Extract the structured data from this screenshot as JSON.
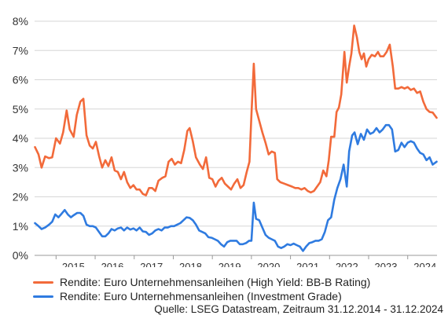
{
  "chart_data": {
    "type": "line",
    "title": "",
    "xlabel": "",
    "ylabel": "",
    "ylim": [
      0,
      8
    ],
    "xlim": [
      2014.45,
      2024.75
    ],
    "y_tick_values": [
      0,
      1,
      2,
      3,
      4,
      5,
      6,
      7,
      8
    ],
    "y_tick_labels": [
      "0%",
      "1%",
      "2%",
      "3%",
      "4%",
      "5%",
      "6%",
      "7%",
      "8%"
    ],
    "x_tick_positions": [
      2015,
      2016,
      2017,
      2018,
      2019,
      2020,
      2021,
      2022,
      2023,
      2024
    ],
    "x_tick_labels": [
      "2015",
      "2016",
      "2017",
      "2018",
      "2019",
      "2020",
      "2021",
      "2022",
      "2023",
      "2024"
    ],
    "grid": "horizontal",
    "legend_position": "bottom",
    "series": [
      {
        "name": "Rendite: Euro Unternehmensanleihen (High Yield: BB-B Rating)",
        "color": "#f26a3a",
        "points": [
          [
            2014.46,
            3.7
          ],
          [
            2014.55,
            3.45
          ],
          [
            2014.63,
            3.0
          ],
          [
            2014.72,
            3.38
          ],
          [
            2014.82,
            3.32
          ],
          [
            2014.9,
            3.35
          ],
          [
            2015.0,
            4.0
          ],
          [
            2015.1,
            3.82
          ],
          [
            2015.18,
            4.2
          ],
          [
            2015.27,
            4.95
          ],
          [
            2015.35,
            4.3
          ],
          [
            2015.45,
            4.05
          ],
          [
            2015.53,
            4.8
          ],
          [
            2015.62,
            5.25
          ],
          [
            2015.7,
            5.35
          ],
          [
            2015.78,
            4.1
          ],
          [
            2015.86,
            3.75
          ],
          [
            2015.94,
            3.65
          ],
          [
            2016.02,
            3.88
          ],
          [
            2016.1,
            3.4
          ],
          [
            2016.18,
            3.0
          ],
          [
            2016.26,
            3.25
          ],
          [
            2016.34,
            3.05
          ],
          [
            2016.42,
            3.35
          ],
          [
            2016.5,
            2.9
          ],
          [
            2016.58,
            2.85
          ],
          [
            2016.66,
            2.6
          ],
          [
            2016.74,
            2.85
          ],
          [
            2016.82,
            2.5
          ],
          [
            2016.9,
            2.3
          ],
          [
            2016.98,
            2.4
          ],
          [
            2017.06,
            2.25
          ],
          [
            2017.14,
            2.25
          ],
          [
            2017.22,
            2.1
          ],
          [
            2017.3,
            2.05
          ],
          [
            2017.38,
            2.3
          ],
          [
            2017.46,
            2.3
          ],
          [
            2017.54,
            2.2
          ],
          [
            2017.62,
            2.55
          ],
          [
            2017.72,
            2.65
          ],
          [
            2017.8,
            2.7
          ],
          [
            2017.88,
            3.2
          ],
          [
            2017.96,
            3.3
          ],
          [
            2018.04,
            3.1
          ],
          [
            2018.12,
            3.2
          ],
          [
            2018.2,
            3.15
          ],
          [
            2018.28,
            3.6
          ],
          [
            2018.36,
            4.25
          ],
          [
            2018.42,
            4.35
          ],
          [
            2018.5,
            3.9
          ],
          [
            2018.58,
            3.35
          ],
          [
            2018.68,
            3.1
          ],
          [
            2018.76,
            2.95
          ],
          [
            2018.84,
            3.35
          ],
          [
            2018.92,
            2.65
          ],
          [
            2019.0,
            2.6
          ],
          [
            2019.08,
            2.35
          ],
          [
            2019.16,
            2.55
          ],
          [
            2019.24,
            2.65
          ],
          [
            2019.32,
            2.45
          ],
          [
            2019.4,
            2.35
          ],
          [
            2019.48,
            2.25
          ],
          [
            2019.56,
            2.45
          ],
          [
            2019.64,
            2.6
          ],
          [
            2019.72,
            2.3
          ],
          [
            2019.8,
            2.4
          ],
          [
            2019.88,
            2.85
          ],
          [
            2019.95,
            3.2
          ],
          [
            2020.0,
            4.8
          ],
          [
            2020.06,
            6.55
          ],
          [
            2020.12,
            5.0
          ],
          [
            2020.2,
            4.6
          ],
          [
            2020.28,
            4.2
          ],
          [
            2020.36,
            3.85
          ],
          [
            2020.44,
            3.45
          ],
          [
            2020.52,
            3.55
          ],
          [
            2020.6,
            3.5
          ],
          [
            2020.66,
            2.6
          ],
          [
            2020.74,
            2.5
          ],
          [
            2020.84,
            2.45
          ],
          [
            2020.94,
            2.4
          ],
          [
            2021.04,
            2.35
          ],
          [
            2021.12,
            2.3
          ],
          [
            2021.2,
            2.3
          ],
          [
            2021.28,
            2.25
          ],
          [
            2021.36,
            2.3
          ],
          [
            2021.44,
            2.2
          ],
          [
            2021.52,
            2.15
          ],
          [
            2021.6,
            2.2
          ],
          [
            2021.68,
            2.35
          ],
          [
            2021.76,
            2.5
          ],
          [
            2021.84,
            2.9
          ],
          [
            2021.92,
            2.7
          ],
          [
            2021.98,
            3.25
          ],
          [
            2022.04,
            4.05
          ],
          [
            2022.12,
            4.05
          ],
          [
            2022.18,
            4.9
          ],
          [
            2022.24,
            5.05
          ],
          [
            2022.3,
            5.5
          ],
          [
            2022.38,
            6.95
          ],
          [
            2022.44,
            5.9
          ],
          [
            2022.5,
            6.45
          ],
          [
            2022.56,
            6.9
          ],
          [
            2022.63,
            7.85
          ],
          [
            2022.7,
            7.45
          ],
          [
            2022.76,
            6.95
          ],
          [
            2022.82,
            6.7
          ],
          [
            2022.88,
            6.9
          ],
          [
            2022.94,
            6.45
          ],
          [
            2023.0,
            6.7
          ],
          [
            2023.08,
            6.85
          ],
          [
            2023.16,
            6.8
          ],
          [
            2023.24,
            6.95
          ],
          [
            2023.3,
            6.8
          ],
          [
            2023.38,
            6.8
          ],
          [
            2023.46,
            6.95
          ],
          [
            2023.54,
            7.2
          ],
          [
            2023.62,
            6.45
          ],
          [
            2023.68,
            5.7
          ],
          [
            2023.76,
            5.7
          ],
          [
            2023.84,
            5.75
          ],
          [
            2023.92,
            5.7
          ],
          [
            2024.0,
            5.75
          ],
          [
            2024.08,
            5.65
          ],
          [
            2024.16,
            5.7
          ],
          [
            2024.24,
            5.55
          ],
          [
            2024.32,
            5.6
          ],
          [
            2024.4,
            5.25
          ],
          [
            2024.48,
            5.0
          ],
          [
            2024.56,
            4.9
          ],
          [
            2024.64,
            4.88
          ],
          [
            2024.74,
            4.7
          ]
        ]
      },
      {
        "name": "Rendite: Euro Unternehmensanleihen (Investment Grade)",
        "color": "#2f7be0",
        "points": [
          [
            2014.46,
            1.1
          ],
          [
            2014.55,
            1.0
          ],
          [
            2014.63,
            0.9
          ],
          [
            2014.72,
            0.95
          ],
          [
            2014.82,
            1.05
          ],
          [
            2014.9,
            1.15
          ],
          [
            2014.98,
            1.4
          ],
          [
            2015.06,
            1.3
          ],
          [
            2015.14,
            1.42
          ],
          [
            2015.22,
            1.55
          ],
          [
            2015.3,
            1.4
          ],
          [
            2015.38,
            1.3
          ],
          [
            2015.46,
            1.38
          ],
          [
            2015.54,
            1.45
          ],
          [
            2015.62,
            1.45
          ],
          [
            2015.7,
            1.35
          ],
          [
            2015.78,
            1.05
          ],
          [
            2015.86,
            1.0
          ],
          [
            2015.94,
            1.0
          ],
          [
            2016.02,
            0.95
          ],
          [
            2016.1,
            0.8
          ],
          [
            2016.18,
            0.65
          ],
          [
            2016.26,
            0.65
          ],
          [
            2016.34,
            0.75
          ],
          [
            2016.42,
            0.9
          ],
          [
            2016.5,
            0.85
          ],
          [
            2016.58,
            0.92
          ],
          [
            2016.66,
            0.95
          ],
          [
            2016.74,
            0.85
          ],
          [
            2016.82,
            0.95
          ],
          [
            2016.9,
            0.88
          ],
          [
            2016.98,
            0.92
          ],
          [
            2017.06,
            0.85
          ],
          [
            2017.14,
            0.95
          ],
          [
            2017.22,
            0.82
          ],
          [
            2017.3,
            0.8
          ],
          [
            2017.38,
            0.7
          ],
          [
            2017.46,
            0.75
          ],
          [
            2017.54,
            0.85
          ],
          [
            2017.62,
            0.9
          ],
          [
            2017.7,
            0.85
          ],
          [
            2017.78,
            0.95
          ],
          [
            2017.86,
            0.95
          ],
          [
            2017.94,
            1.0
          ],
          [
            2018.02,
            1.0
          ],
          [
            2018.1,
            1.05
          ],
          [
            2018.18,
            1.1
          ],
          [
            2018.26,
            1.2
          ],
          [
            2018.34,
            1.3
          ],
          [
            2018.42,
            1.28
          ],
          [
            2018.5,
            1.2
          ],
          [
            2018.58,
            1.05
          ],
          [
            2018.66,
            0.85
          ],
          [
            2018.74,
            0.8
          ],
          [
            2018.82,
            0.75
          ],
          [
            2018.9,
            0.62
          ],
          [
            2018.98,
            0.6
          ],
          [
            2019.06,
            0.55
          ],
          [
            2019.14,
            0.5
          ],
          [
            2019.22,
            0.38
          ],
          [
            2019.3,
            0.3
          ],
          [
            2019.38,
            0.45
          ],
          [
            2019.46,
            0.5
          ],
          [
            2019.54,
            0.5
          ],
          [
            2019.62,
            0.5
          ],
          [
            2019.7,
            0.38
          ],
          [
            2019.78,
            0.38
          ],
          [
            2019.86,
            0.42
          ],
          [
            2019.94,
            0.5
          ],
          [
            2020.0,
            0.5
          ],
          [
            2020.06,
            1.8
          ],
          [
            2020.12,
            1.25
          ],
          [
            2020.2,
            1.2
          ],
          [
            2020.28,
            0.95
          ],
          [
            2020.36,
            0.7
          ],
          [
            2020.44,
            0.6
          ],
          [
            2020.52,
            0.55
          ],
          [
            2020.6,
            0.5
          ],
          [
            2020.68,
            0.3
          ],
          [
            2020.76,
            0.25
          ],
          [
            2020.84,
            0.3
          ],
          [
            2020.92,
            0.38
          ],
          [
            2021.0,
            0.35
          ],
          [
            2021.08,
            0.4
          ],
          [
            2021.16,
            0.35
          ],
          [
            2021.24,
            0.3
          ],
          [
            2021.32,
            0.15
          ],
          [
            2021.4,
            0.3
          ],
          [
            2021.48,
            0.42
          ],
          [
            2021.56,
            0.45
          ],
          [
            2021.64,
            0.5
          ],
          [
            2021.72,
            0.5
          ],
          [
            2021.8,
            0.55
          ],
          [
            2021.88,
            0.8
          ],
          [
            2021.96,
            1.2
          ],
          [
            2022.04,
            1.3
          ],
          [
            2022.12,
            1.9
          ],
          [
            2022.2,
            2.3
          ],
          [
            2022.28,
            2.6
          ],
          [
            2022.36,
            3.1
          ],
          [
            2022.44,
            2.35
          ],
          [
            2022.5,
            3.55
          ],
          [
            2022.58,
            4.1
          ],
          [
            2022.64,
            4.2
          ],
          [
            2022.72,
            3.8
          ],
          [
            2022.8,
            4.15
          ],
          [
            2022.88,
            3.95
          ],
          [
            2022.96,
            4.3
          ],
          [
            2023.04,
            4.15
          ],
          [
            2023.12,
            4.2
          ],
          [
            2023.2,
            4.35
          ],
          [
            2023.28,
            4.2
          ],
          [
            2023.36,
            4.3
          ],
          [
            2023.44,
            4.45
          ],
          [
            2023.52,
            4.45
          ],
          [
            2023.6,
            4.3
          ],
          [
            2023.68,
            3.55
          ],
          [
            2023.76,
            3.6
          ],
          [
            2023.84,
            3.85
          ],
          [
            2023.92,
            3.7
          ],
          [
            2024.0,
            3.85
          ],
          [
            2024.08,
            3.9
          ],
          [
            2024.16,
            3.85
          ],
          [
            2024.24,
            3.65
          ],
          [
            2024.32,
            3.5
          ],
          [
            2024.4,
            3.45
          ],
          [
            2024.48,
            3.25
          ],
          [
            2024.56,
            3.35
          ],
          [
            2024.64,
            3.1
          ],
          [
            2024.74,
            3.2
          ]
        ]
      }
    ]
  },
  "source_note": "Quelle: LSEG Datastream, Zeitraum 31.12.2014 - 31.12.2024"
}
